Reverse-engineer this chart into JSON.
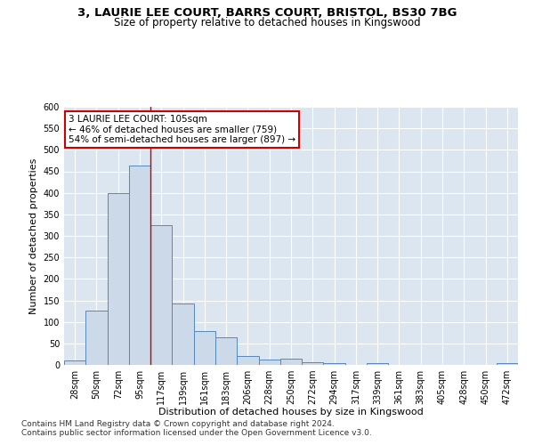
{
  "title1": "3, LAURIE LEE COURT, BARRS COURT, BRISTOL, BS30 7BG",
  "title2": "Size of property relative to detached houses in Kingswood",
  "xlabel": "Distribution of detached houses by size in Kingswood",
  "ylabel": "Number of detached properties",
  "categories": [
    "28sqm",
    "50sqm",
    "72sqm",
    "95sqm",
    "117sqm",
    "139sqm",
    "161sqm",
    "183sqm",
    "206sqm",
    "228sqm",
    "250sqm",
    "272sqm",
    "294sqm",
    "317sqm",
    "339sqm",
    "361sqm",
    "383sqm",
    "405sqm",
    "428sqm",
    "450sqm",
    "472sqm"
  ],
  "values": [
    10,
    127,
    400,
    463,
    325,
    142,
    78,
    65,
    20,
    13,
    15,
    7,
    5,
    0,
    5,
    0,
    0,
    0,
    0,
    0,
    5
  ],
  "bar_color": "#ccd9e8",
  "bar_edge_color": "#5588bb",
  "vline_position": 3.5,
  "vline_color": "#cc0000",
  "annotation_line1": "3 LAURIE LEE COURT: 105sqm",
  "annotation_line2": "← 46% of detached houses are smaller (759)",
  "annotation_line3": "54% of semi-detached houses are larger (897) →",
  "annotation_box_color": "#ffffff",
  "annotation_box_edge": "#cc0000",
  "ylim": [
    0,
    600
  ],
  "yticks": [
    0,
    50,
    100,
    150,
    200,
    250,
    300,
    350,
    400,
    450,
    500,
    550,
    600
  ],
  "background_color": "#dce6f0",
  "footer1": "Contains HM Land Registry data © Crown copyright and database right 2024.",
  "footer2": "Contains public sector information licensed under the Open Government Licence v3.0.",
  "title_fontsize": 9.5,
  "subtitle_fontsize": 8.5,
  "xlabel_fontsize": 8,
  "ylabel_fontsize": 8,
  "tick_fontsize": 7,
  "annotation_fontsize": 7.5,
  "footer_fontsize": 6.5
}
